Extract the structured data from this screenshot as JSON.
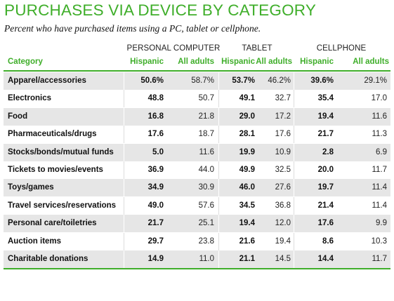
{
  "chart_data": {
    "type": "table",
    "title": "PURCHASES VIA DEVICE BY CATEGORY",
    "subtitle": "Percent who have purchased items using a PC, tablet or cellphone.",
    "groups": [
      "PERSONAL COMPUTER",
      "TABLET",
      "CELLPHONE"
    ],
    "columns": [
      "Category",
      "Hispanic",
      "All adults",
      "Hispanic",
      "All adults",
      "Hispanic",
      "All adults"
    ],
    "rows": [
      {
        "category": "Apparel/accessories",
        "values": [
          "50.6%",
          "58.7%",
          "53.7%",
          "46.2%",
          "39.6%",
          "29.1%"
        ]
      },
      {
        "category": "Electronics",
        "values": [
          "48.8",
          "50.7",
          "49.1",
          "32.7",
          "35.4",
          "17.0"
        ]
      },
      {
        "category": "Food",
        "values": [
          "16.8",
          "21.8",
          "29.0",
          "17.2",
          "19.4",
          "11.6"
        ]
      },
      {
        "category": "Pharmaceuticals/drugs",
        "values": [
          "17.6",
          "18.7",
          "28.1",
          "17.6",
          "21.7",
          "11.3"
        ]
      },
      {
        "category": "Stocks/bonds/mutual funds",
        "values": [
          "5.0",
          "11.6",
          "19.9",
          "10.9",
          "2.8",
          "6.9"
        ]
      },
      {
        "category": "Tickets to movies/events",
        "values": [
          "36.9",
          "44.0",
          "49.9",
          "32.5",
          "20.0",
          "11.7"
        ]
      },
      {
        "category": "Toys/games",
        "values": [
          "34.9",
          "30.9",
          "46.0",
          "27.6",
          "19.7",
          "11.4"
        ]
      },
      {
        "category": "Travel services/reservations",
        "values": [
          "49.0",
          "57.6",
          "34.5",
          "36.8",
          "21.4",
          "11.4"
        ]
      },
      {
        "category": "Personal care/toiletries",
        "values": [
          "21.7",
          "25.1",
          "19.4",
          "12.0",
          "17.6",
          "9.9"
        ]
      },
      {
        "category": "Auction items",
        "values": [
          "29.7",
          "23.8",
          "21.6",
          "19.4",
          "8.6",
          "10.3"
        ]
      },
      {
        "category": "Charitable donations",
        "values": [
          "14.9",
          "11.0",
          "21.1",
          "14.5",
          "14.4",
          "11.7"
        ]
      }
    ],
    "colors": {
      "accent": "#3fae2a",
      "shade": "#e6e6e6"
    }
  }
}
